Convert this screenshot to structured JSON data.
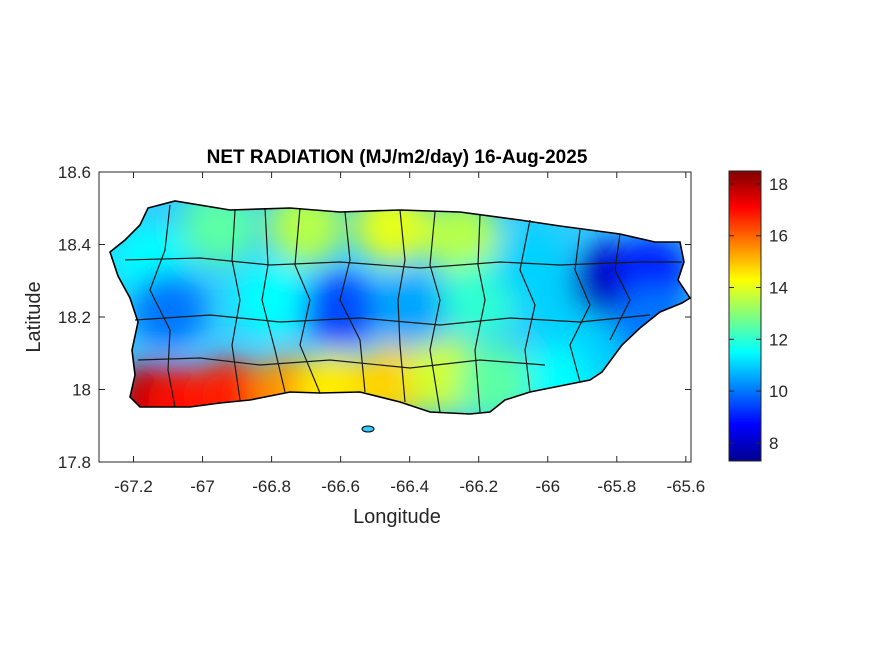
{
  "chart_data": {
    "type": "heatmap",
    "title": "NET RADIATION (MJ/m2/day) 16-Aug-2025",
    "xlabel": "Longitude",
    "ylabel": "Latitude",
    "xlim": [
      -67.3,
      -65.585
    ],
    "ylim": [
      17.8,
      18.6
    ],
    "xticks": [
      -67.2,
      -67,
      -66.8,
      -66.6,
      -66.4,
      -66.2,
      -66,
      -65.8,
      -65.6
    ],
    "xtick_labels": [
      "-67.2",
      "-67",
      "-66.8",
      "-66.6",
      "-66.4",
      "-66.2",
      "-66",
      "-65.8",
      "-65.6"
    ],
    "yticks": [
      17.8,
      18,
      18.2,
      18.4,
      18.6
    ],
    "ytick_labels": [
      "17.8",
      "18",
      "18.2",
      "18.4",
      "18.6"
    ],
    "colorbar": {
      "colormap": "jet",
      "range": [
        7.3,
        18.5
      ],
      "ticks": [
        8,
        10,
        12,
        14,
        16,
        18
      ],
      "tick_labels": [
        "8",
        "10",
        "12",
        "14",
        "16",
        "18"
      ]
    },
    "grid": false,
    "regions": [
      {
        "lon": -67.15,
        "lat": 17.97,
        "value": 17.8
      },
      {
        "lon": -67.05,
        "lat": 17.96,
        "value": 17.0
      },
      {
        "lon": -66.92,
        "lat": 17.98,
        "value": 16.8
      },
      {
        "lon": -66.75,
        "lat": 17.99,
        "value": 15.5
      },
      {
        "lon": -66.62,
        "lat": 18.0,
        "value": 14.5
      },
      {
        "lon": -66.45,
        "lat": 18.02,
        "value": 14.8
      },
      {
        "lon": -66.3,
        "lat": 18.04,
        "value": 13.8
      },
      {
        "lon": -66.15,
        "lat": 18.02,
        "value": 12.5
      },
      {
        "lon": -65.95,
        "lat": 18.03,
        "value": 11.5
      },
      {
        "lon": -65.8,
        "lat": 18.1,
        "value": 11.0
      },
      {
        "lon": -67.15,
        "lat": 18.35,
        "value": 11.5
      },
      {
        "lon": -67.1,
        "lat": 18.22,
        "value": 10.0
      },
      {
        "lon": -66.95,
        "lat": 18.45,
        "value": 12.5
      },
      {
        "lon": -66.8,
        "lat": 18.25,
        "value": 11.5
      },
      {
        "lon": -66.7,
        "lat": 18.45,
        "value": 13.5
      },
      {
        "lon": -66.6,
        "lat": 18.22,
        "value": 9.5
      },
      {
        "lon": -66.45,
        "lat": 18.45,
        "value": 14.0
      },
      {
        "lon": -66.4,
        "lat": 18.22,
        "value": 10.5
      },
      {
        "lon": -66.25,
        "lat": 18.42,
        "value": 13.5
      },
      {
        "lon": -66.2,
        "lat": 18.25,
        "value": 12.0
      },
      {
        "lon": -66.05,
        "lat": 18.35,
        "value": 11.0
      },
      {
        "lon": -65.95,
        "lat": 18.22,
        "value": 11.0
      },
      {
        "lon": -65.82,
        "lat": 18.3,
        "value": 8.0
      },
      {
        "lon": -65.7,
        "lat": 18.32,
        "value": 9.0
      },
      {
        "lon": -65.7,
        "lat": 18.18,
        "value": 10.0
      }
    ]
  }
}
